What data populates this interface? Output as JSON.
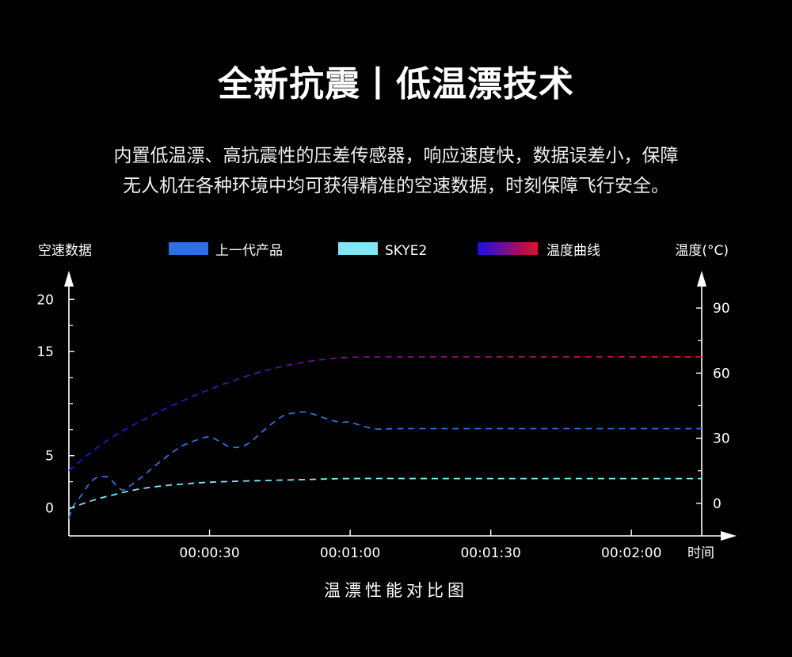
{
  "header": {
    "title": "全新抗震丨低温漂技术",
    "subtitle_lines": [
      "内置低温漂、高抗震性的压差传感器，响应速度快，数据误差小，保障",
      "无人机在各种环境中均可获得精准的空速数据，时刻保障飞行安全。"
    ]
  },
  "colors": {
    "background": "#000000",
    "prev_product": "#2a72e0",
    "skye2": "#7ee8f5",
    "temp_start": "#1a10e0",
    "temp_end": "#e0102a"
  },
  "chart_data": {
    "type": "line",
    "title": "",
    "caption": "温漂性能对比图",
    "ylabel": "空速数据",
    "y2label": "温度(°C)",
    "xlabel": "时间",
    "x_unit": "seconds",
    "xlim": [
      0,
      135
    ],
    "x_ticks": [
      30,
      60,
      90,
      120
    ],
    "x_tick_labels": [
      "00:00:30",
      "00:01:00",
      "00:01:30",
      "00:02:00"
    ],
    "ylim": [
      -2.7,
      22.3
    ],
    "y_ticks": [
      0,
      5,
      15,
      20
    ],
    "y_tick_labels": [
      "0",
      "5",
      "15",
      "20"
    ],
    "y_minor_ticks": [
      2.5,
      7.5,
      10,
      12.5,
      17.5
    ],
    "y2lim": [
      -15,
      105
    ],
    "y2_ticks": [
      0,
      30,
      60,
      90
    ],
    "y2_tick_labels": [
      "0",
      "30",
      "60",
      "90"
    ],
    "y2_minor_ticks": [
      15,
      45,
      75
    ],
    "grid": false,
    "legend_position": "top",
    "series": [
      {
        "name": "上一代产品",
        "axis": "left",
        "x": [
          0,
          1,
          2.5,
          4,
          5.5,
          7,
          8.5,
          10,
          11.5,
          13,
          14.5,
          16,
          18,
          20,
          22,
          24,
          26,
          28,
          30,
          32,
          34,
          36,
          38,
          40,
          42,
          44,
          46,
          48,
          50,
          52,
          54,
          56,
          58,
          60,
          65,
          70,
          80,
          90,
          100,
          110,
          120,
          135
        ],
        "values": [
          -1.0,
          0.2,
          1.1,
          2.1,
          2.8,
          3.0,
          2.9,
          2.2,
          1.7,
          2.1,
          2.6,
          3.1,
          3.9,
          4.6,
          5.3,
          5.9,
          6.3,
          6.6,
          6.8,
          6.4,
          5.9,
          5.8,
          6.1,
          6.8,
          7.6,
          8.3,
          8.9,
          9.1,
          9.2,
          9.0,
          8.7,
          8.4,
          8.2,
          8.2,
          7.6,
          7.6,
          7.6,
          7.6,
          7.6,
          7.6,
          7.6,
          7.6
        ]
      },
      {
        "name": "SKYE2",
        "axis": "left",
        "x": [
          0,
          5,
          10,
          15,
          20,
          25,
          30,
          40,
          50,
          60,
          80,
          100,
          120,
          135
        ],
        "values": [
          -0.1,
          0.7,
          1.3,
          1.8,
          2.1,
          2.3,
          2.45,
          2.6,
          2.7,
          2.8,
          2.8,
          2.8,
          2.8,
          2.8
        ]
      },
      {
        "name": "温度曲线",
        "axis": "right",
        "x": [
          0,
          5,
          10,
          15,
          20,
          25,
          30,
          35,
          40,
          45,
          50,
          55,
          60,
          65,
          70,
          80,
          90,
          100,
          110,
          120,
          135
        ],
        "values": [
          15,
          24,
          31.5,
          37.5,
          43,
          48,
          52.5,
          56.5,
          60,
          62.8,
          65,
          66.5,
          67.3,
          67.5,
          67.5,
          67.5,
          67.5,
          67.5,
          67.5,
          67.5,
          67.5
        ]
      }
    ]
  }
}
